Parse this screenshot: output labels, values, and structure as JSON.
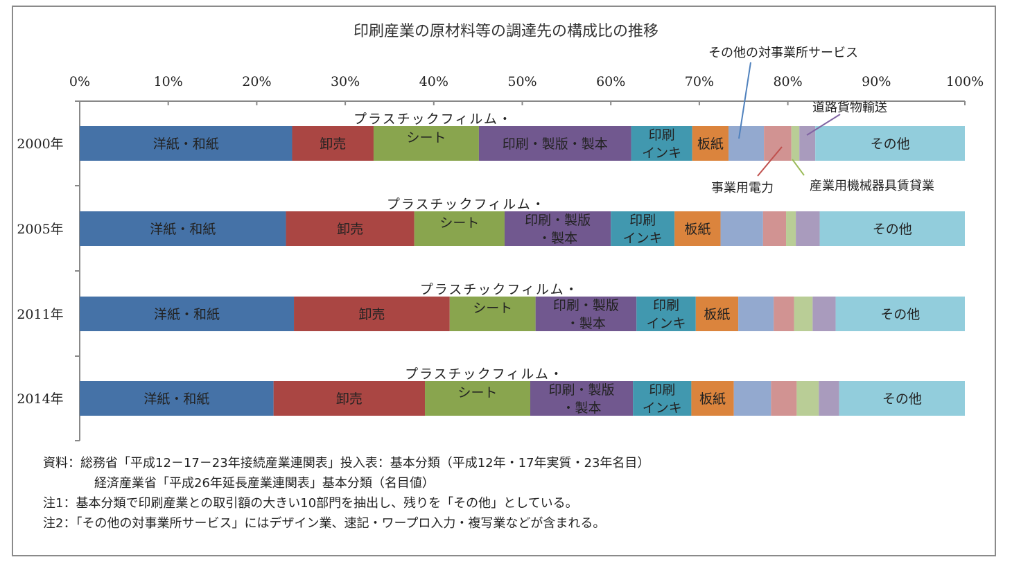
{
  "chart_data": {
    "type": "bar",
    "stacked": "percent",
    "orientation": "horizontal",
    "title": "印刷産業の原材料等の調達先の構成比の推移",
    "xticks": [
      "0%",
      "10%",
      "20%",
      "30%",
      "40%",
      "50%",
      "60%",
      "70%",
      "80%",
      "90%",
      "100%"
    ],
    "xlim": [
      0,
      100
    ],
    "categories": [
      "2000年",
      "2005年",
      "2011年",
      "2014年"
    ],
    "series": [
      {
        "name": "洋紙・和紙",
        "color": "#4572A7",
        "values": [
          24.0,
          23.3,
          24.2,
          21.9
        ]
      },
      {
        "name": "卸売",
        "color": "#AA4643",
        "values": [
          9.2,
          14.5,
          17.6,
          17.1
        ]
      },
      {
        "name": "プラスチックフィルム・シート",
        "color": "#89A54E",
        "values": [
          11.9,
          10.2,
          9.7,
          11.9
        ]
      },
      {
        "name": "印刷・製版・製本",
        "color": "#71588F",
        "values": [
          17.2,
          12.0,
          11.4,
          11.6
        ]
      },
      {
        "name": "印刷インキ",
        "color": "#4198AF",
        "values": [
          6.9,
          7.2,
          6.7,
          6.6
        ]
      },
      {
        "name": "板紙",
        "color": "#DB843D",
        "values": [
          4.1,
          5.2,
          4.8,
          4.8
        ]
      },
      {
        "name": "その他の対事業所サービス",
        "color": "#93A9CF",
        "values": [
          4.0,
          4.8,
          4.0,
          4.2
        ]
      },
      {
        "name": "事業用電力",
        "color": "#D19392",
        "values": [
          3.1,
          2.6,
          2.3,
          2.9
        ]
      },
      {
        "name": "産業用機械器具賃貸業",
        "color": "#B9CD96",
        "values": [
          0.9,
          1.1,
          2.1,
          2.5
        ]
      },
      {
        "name": "道路貨物輸送",
        "color": "#A99BBD",
        "values": [
          1.8,
          2.7,
          2.6,
          2.3
        ]
      },
      {
        "name": "その他",
        "color": "#92CDDC",
        "values": [
          16.9,
          16.4,
          14.6,
          14.2
        ]
      }
    ],
    "segment_labels": {
      "洋紙・和紙": [
        "洋紙・和紙"
      ],
      "卸売": [
        "卸売"
      ],
      "プラスチックフィルム・シート": [
        "プラスチックフィルム・",
        "シート"
      ],
      "印刷・製版・製本_2000": [
        "印刷・製版・製本"
      ],
      "印刷・製版・製本": [
        "印刷・製版",
        "・製本"
      ],
      "印刷インキ": [
        "印刷",
        "インキ"
      ],
      "板紙": [
        "板紙"
      ],
      "その他": [
        "その他"
      ]
    },
    "callouts": {
      "services": "その他の対事業所サービス",
      "road": "道路貨物輸送",
      "power": "事業用電力",
      "rental": "産業用機械器具賃貸業"
    },
    "grid": false
  },
  "notes": {
    "line1": "資料：総務省「平成12－17－23年接続産業連関表」投入表：基本分類（平成12年・17年実質・23年名目）",
    "line2": "経済産業省「平成26年延長産業連関表」基本分類（名目値）",
    "line3": "注1：基本分類で印刷産業との取引額の大きい10部門を抽出し、残りを「その他」としている。",
    "line4": "注2：「その他の対事業所サービス」にはデザイン業、速記・ワープロ入力・複写業などが含まれる。"
  }
}
